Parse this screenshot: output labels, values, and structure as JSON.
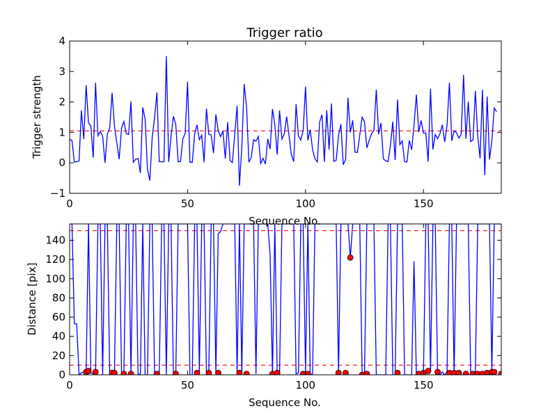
{
  "chart_data": [
    {
      "type": "line",
      "title": "Trigger ratio",
      "xlabel": "Sequence No.",
      "ylabel": "Trigger strength",
      "xlim": [
        0,
        183
      ],
      "ylim": [
        -1,
        4
      ],
      "xticks": [
        "0",
        "50",
        "100",
        "150"
      ],
      "xtick_values": [
        0,
        50,
        100,
        150
      ],
      "yticks": [
        "−1",
        "0",
        "1",
        "2",
        "3",
        "4"
      ],
      "ytick_values": [
        -1,
        0,
        1,
        2,
        3,
        4
      ],
      "threshold": 1.05,
      "series": [
        {
          "color": "#0000ff",
          "values": [
            0.78,
            0.73,
            0.03,
            0.04,
            0.06,
            1.72,
            0.78,
            2.55,
            1.31,
            1.21,
            0.17,
            2.63,
            0.89,
            1.03,
            0.88,
            0.0,
            0.95,
            1.14,
            2.3,
            1.22,
            0.66,
            0.12,
            1.14,
            1.36,
            0.96,
            0.93,
            2.02,
            0.02,
            0.12,
            0.14,
            -0.33,
            1.82,
            1.44,
            -0.21,
            -0.58,
            0.84,
            1.48,
            2.31,
            0.04,
            0.03,
            0.04,
            3.51,
            0.03,
            0.87,
            1.53,
            1.26,
            0.04,
            0.04,
            0.79,
            0.97,
            2.66,
            0.02,
            0.02,
            0.94,
            1.25,
            0.76,
            0.91,
            0.02,
            1.78,
            0.93,
            0.92,
            0.32,
            1.59,
            1.05,
            0.86,
            1.05,
            0.14,
            1.34,
            0.08,
            0.01,
            0.94,
            1.87,
            -0.75,
            0.52,
            2.59,
            1.85,
            0.02,
            0.18,
            0.76,
            0.71,
            0.87,
            -0.02,
            0.15,
            -0.04,
            0.79,
            0.45,
            1.77,
            1.25,
            0.27,
            1.72,
            0.78,
            0.95,
            1.52,
            0.9,
            0.27,
            0.04,
            1.93,
            0.88,
            0.75,
            1.06,
            2.5,
            0.74,
            1.09,
            0.43,
            0.14,
            0.03,
            1.35,
            1.58,
            0.03,
            1.73,
            0.43,
            1.95,
            0.05,
            0.08,
            0.9,
            1.27,
            -0.06,
            0.11,
            2.14,
            1.0,
            1.4,
            0.35,
            0.34,
            0.91,
            1.5,
            1.35,
            0.49,
            0.74,
            0.96,
            1.06,
            2.4,
            0.94,
            1.31,
            0.13,
            0.07,
            0.04,
            0.58,
            1.35,
            0.09,
            2.08,
            0.6,
            0.72,
            0.04,
            0.03,
            0.74,
            0.43,
            1.23,
            2.24,
            1.01,
            1.39,
            0.98,
            0.98,
            0.04,
            2.43,
            0.44,
            0.93,
            0.79,
            0.96,
            1.25,
            0.69,
            1.23,
            2.63,
            0.72,
            1.05,
            0.99,
            0.81,
            0.94,
            2.89,
            0.79,
            2.01,
            0.7,
            0.75,
            2.36,
            0.89,
            0.15,
            2.4,
            -0.4,
            2.18,
            0.11,
            0.73,
            1.8,
            1.68
          ]
        }
      ]
    },
    {
      "type": "line",
      "title": "",
      "xlabel": "Sequence No.",
      "ylabel": "Distance [pix]",
      "xlim": [
        0,
        183
      ],
      "ylim": [
        0,
        157
      ],
      "xticks": [
        "0",
        "50",
        "100",
        "150"
      ],
      "xtick_values": [
        0,
        50,
        100,
        150
      ],
      "yticks": [
        "0",
        "20",
        "40",
        "60",
        "80",
        "100",
        "120",
        "140"
      ],
      "ytick_values": [
        0,
        20,
        40,
        60,
        80,
        100,
        120,
        140
      ],
      "thresholds": [
        150,
        10
      ],
      "series": [
        {
          "color": "#0000ff",
          "values": [
            157,
            157,
            53,
            53,
            0,
            2,
            3,
            2,
            157,
            2,
            1,
            3,
            157,
            157,
            0,
            157,
            157,
            1,
            2,
            2,
            157,
            157,
            2,
            0,
            157,
            157,
            1,
            157,
            157,
            0,
            1,
            157,
            0,
            0,
            157,
            157,
            1,
            0,
            0,
            157,
            157,
            0,
            157,
            157,
            0,
            0,
            157,
            157,
            157,
            157,
            157,
            0,
            0,
            157,
            157,
            3,
            157,
            157,
            0,
            1,
            157,
            157,
            2,
            147,
            149,
            157,
            157,
            157,
            157,
            157,
            157,
            1,
            157,
            1,
            157,
            157,
            157,
            157,
            157,
            1,
            157,
            157,
            157,
            157,
            157,
            124,
            0,
            157,
            1,
            0,
            157,
            157,
            157,
            157,
            157,
            157,
            1,
            2,
            157,
            157,
            2,
            157,
            0,
            1,
            157,
            157,
            157,
            157,
            157,
            157,
            157,
            157,
            157,
            157,
            3,
            157,
            157,
            157,
            157,
            122,
            157,
            157,
            157,
            157,
            1,
            0,
            157,
            157,
            157,
            157,
            0,
            0,
            0,
            0,
            0,
            157,
            157,
            0,
            0,
            157,
            157,
            157,
            0,
            0,
            0,
            0,
            118,
            0,
            0,
            3,
            0,
            157,
            157,
            3,
            157,
            157,
            0,
            0,
            3,
            0,
            3,
            157,
            157,
            0,
            157,
            157,
            157,
            157,
            157,
            157,
            2,
            3,
            2,
            157,
            157,
            157,
            157,
            157,
            157,
            3,
            157,
            157,
            157,
            157,
            3,
            0,
            0
          ]
        }
      ],
      "markers": {
        "color": "#ff0000",
        "points": [
          [
            7,
            3
          ],
          [
            8,
            4
          ],
          [
            11,
            3
          ],
          [
            18,
            2
          ],
          [
            19,
            2
          ],
          [
            23,
            1
          ],
          [
            26,
            1
          ],
          [
            37,
            1
          ],
          [
            45,
            1
          ],
          [
            54,
            2
          ],
          [
            59,
            2
          ],
          [
            63,
            2
          ],
          [
            72,
            2
          ],
          [
            75,
            1
          ],
          [
            86,
            1
          ],
          [
            88,
            2
          ],
          [
            99,
            1
          ],
          [
            101,
            1
          ],
          [
            114,
            2
          ],
          [
            117,
            2
          ],
          [
            119,
            122
          ],
          [
            124,
            0
          ],
          [
            126,
            1
          ],
          [
            139,
            2
          ],
          [
            148,
            1
          ],
          [
            150,
            2
          ],
          [
            152,
            4
          ],
          [
            156,
            3
          ],
          [
            161,
            2
          ],
          [
            163,
            2
          ],
          [
            165,
            2
          ],
          [
            168,
            1
          ],
          [
            171,
            1
          ],
          [
            173,
            1
          ],
          [
            175,
            1
          ],
          [
            177,
            2
          ],
          [
            179,
            3
          ],
          [
            180,
            3
          ],
          [
            183,
            1
          ]
        ]
      }
    }
  ]
}
